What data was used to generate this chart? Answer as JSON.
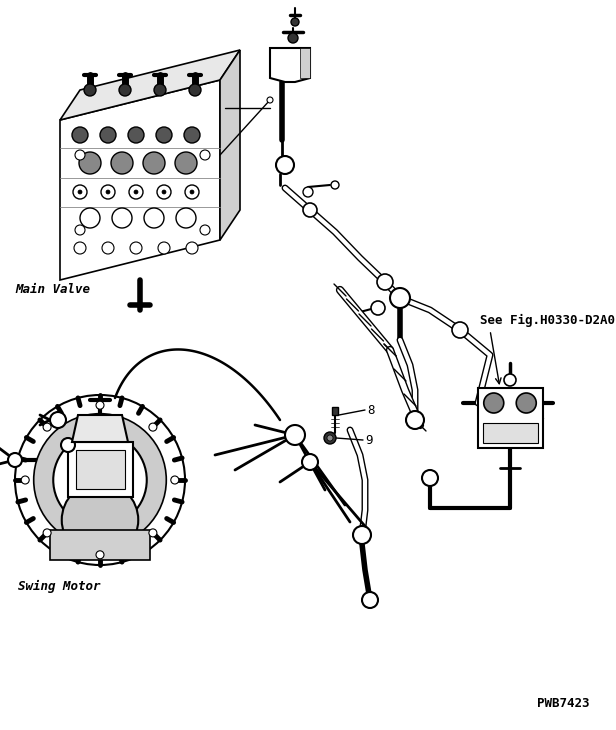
{
  "bg_color": "#ffffff",
  "line_color": "#000000",
  "fig_width": 6.16,
  "fig_height": 7.3,
  "dpi": 100,
  "labels": {
    "main_valve": "Main Valve",
    "swing_motor": "Swing Motor",
    "see_fig": "See Fig.H0330-D2A0",
    "part8": "8",
    "part9": "9",
    "pwb": "PWB7423"
  }
}
